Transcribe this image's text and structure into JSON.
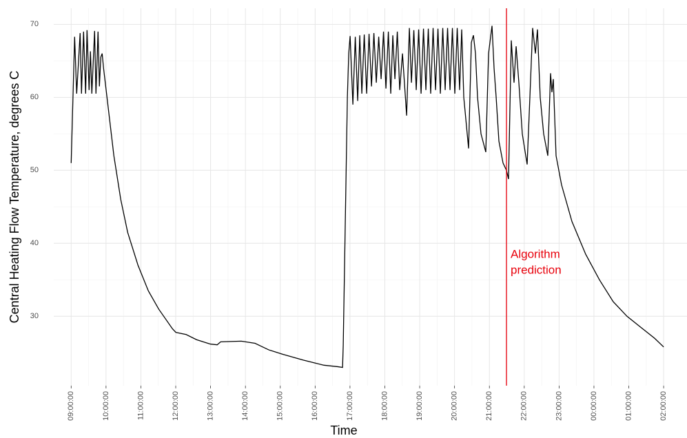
{
  "chart_data": {
    "type": "line",
    "xlabel": "Time",
    "ylabel": "Central Heating Flow Temperature, degrees C",
    "color": "#000000",
    "x": [
      9.0,
      9.099,
      9.158,
      9.257,
      9.296,
      9.356,
      9.415,
      9.455,
      9.514,
      9.553,
      9.593,
      9.672,
      9.711,
      9.771,
      9.81,
      9.85,
      9.889,
      9.929,
      10.028,
      10.225,
      10.423,
      10.621,
      10.917,
      11.213,
      11.51,
      11.905,
      12.004,
      12.3,
      12.597,
      12.992,
      13.19,
      13.289,
      13.881,
      14.277,
      14.672,
      15.067,
      15.66,
      16.253,
      16.648,
      16.787,
      16.806,
      16.925,
      16.964,
      17.004,
      17.083,
      17.152,
      17.221,
      17.281,
      17.34,
      17.409,
      17.478,
      17.547,
      17.617,
      17.686,
      17.755,
      17.824,
      17.893,
      17.962,
      18.032,
      18.101,
      18.17,
      18.229,
      18.289,
      18.358,
      18.427,
      18.506,
      18.625,
      18.704,
      18.763,
      18.832,
      18.901,
      18.97,
      19.04,
      19.109,
      19.178,
      19.247,
      19.316,
      19.385,
      19.455,
      19.524,
      19.593,
      19.662,
      19.731,
      19.8,
      19.87,
      19.939,
      20.008,
      20.077,
      20.146,
      20.206,
      20.265,
      20.344,
      20.403,
      20.482,
      20.542,
      20.601,
      20.66,
      20.759,
      20.897,
      20.976,
      21.075,
      21.134,
      21.194,
      21.273,
      21.391,
      21.49,
      21.549,
      21.628,
      21.707,
      21.767,
      21.846,
      21.944,
      22.083,
      22.162,
      22.241,
      22.32,
      22.379,
      22.458,
      22.557,
      22.676,
      22.755,
      22.794,
      22.834,
      22.913,
      23.071,
      23.368,
      23.763,
      24.158,
      24.553,
      24.949,
      25.344,
      25.739,
      26.0
    ],
    "values": [
      51,
      68.3,
      60.5,
      68.8,
      60.5,
      69,
      60.5,
      69.2,
      61,
      66.3,
      60.5,
      69.1,
      60.5,
      69,
      61.5,
      65.5,
      66,
      64,
      60,
      52,
      46,
      41.5,
      37,
      33.5,
      31,
      28.3,
      27.8,
      27.5,
      26.8,
      26.2,
      26.1,
      26.5,
      26.6,
      26.3,
      25.4,
      24.8,
      24,
      23.3,
      23.1,
      23,
      26,
      60,
      66,
      68.4,
      59,
      68.3,
      59.5,
      68.5,
      60.5,
      68.6,
      60.5,
      68.7,
      61.5,
      68.8,
      62,
      68.3,
      62.5,
      69,
      61.2,
      69,
      60.5,
      68.5,
      62.5,
      69,
      61,
      66,
      57.5,
      69.5,
      62,
      69.2,
      61,
      69.3,
      60.5,
      69.4,
      61,
      69.4,
      60.5,
      69.5,
      61,
      69.4,
      60.5,
      69.5,
      61,
      69.5,
      61,
      69.5,
      60.5,
      69.5,
      61,
      69.3,
      60,
      56,
      53,
      67.5,
      68.5,
      66,
      60,
      55,
      52.5,
      66,
      69.8,
      64,
      60,
      54,
      51,
      50,
      48.8,
      67.8,
      62,
      67,
      62,
      55,
      50.8,
      60,
      69.5,
      66,
      69.3,
      60,
      55,
      52,
      63.3,
      60.7,
      62.5,
      52,
      48,
      43,
      38.5,
      35,
      32,
      30,
      28.5,
      27,
      25.8
    ],
    "xlim": [
      8.5,
      26.67
    ],
    "ylim": [
      20.5,
      72.2
    ],
    "xticks": [
      {
        "value": 9,
        "label": "09:00:00"
      },
      {
        "value": 10,
        "label": "10:00:00"
      },
      {
        "value": 11,
        "label": "11:00:00"
      },
      {
        "value": 12,
        "label": "12:00:00"
      },
      {
        "value": 13,
        "label": "13:00:00"
      },
      {
        "value": 14,
        "label": "14:00:00"
      },
      {
        "value": 15,
        "label": "15:00:00"
      },
      {
        "value": 16,
        "label": "16:00:00"
      },
      {
        "value": 17,
        "label": "17:00:00"
      },
      {
        "value": 18,
        "label": "18:00:00"
      },
      {
        "value": 19,
        "label": "19:00:00"
      },
      {
        "value": 20,
        "label": "20:00:00"
      },
      {
        "value": 21,
        "label": "21:00:00"
      },
      {
        "value": 22,
        "label": "22:00:00"
      },
      {
        "value": 23,
        "label": "23:00:00"
      },
      {
        "value": 24,
        "label": "00:00:00"
      },
      {
        "value": 25,
        "label": "01:00:00"
      },
      {
        "value": 26,
        "label": "02:00:00"
      }
    ],
    "yticks": [
      30,
      40,
      50,
      60,
      70
    ],
    "grid": true,
    "vline": {
      "x": 21.49,
      "color": "#e8000b",
      "label": [
        "Algorithm",
        "prediction"
      ]
    }
  }
}
